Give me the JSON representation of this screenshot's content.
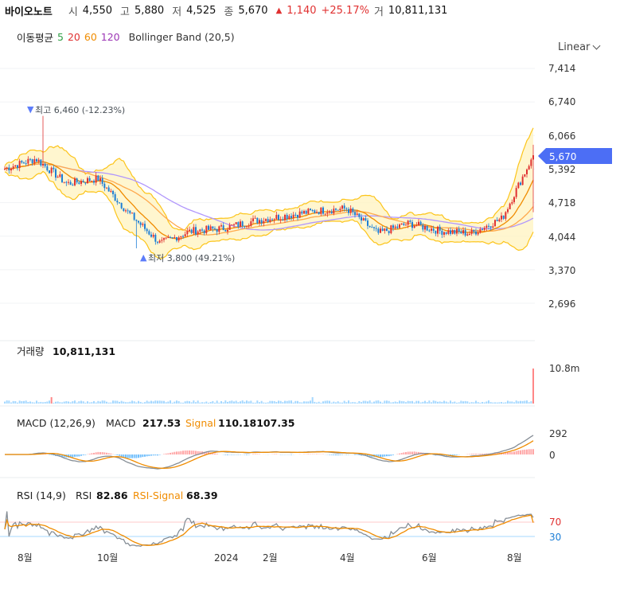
{
  "header": {
    "name": "바이오노트",
    "open_label": "시",
    "open": "4,550",
    "high_label": "고",
    "high": "5,880",
    "low_label": "저",
    "low": "4,525",
    "close_label": "종",
    "close": "5,670",
    "change_arrow": "▲",
    "change": "1,140",
    "change_pct": "+25.17%",
    "volume_label": "거",
    "volume": "10,811,131"
  },
  "ma_legend": {
    "label": "이동평균",
    "ma5": "5",
    "ma20": "20",
    "ma60": "60",
    "ma120": "120",
    "bollinger": "Bollinger Band (20,5)"
  },
  "scale_mode": "Linear",
  "price_axis": {
    "ticks": [
      "7,414",
      "6,740",
      "6,066",
      "5,392",
      "4,718",
      "4,044",
      "3,370",
      "2,696"
    ],
    "current_price": "5,670"
  },
  "annotations": {
    "high": "최고 6,460 (-12.23%)",
    "low": "최저 3,800 (49.21%)"
  },
  "volume_panel": {
    "label": "거래량",
    "value": "10,811,131",
    "axis_tick": "10.8m"
  },
  "macd_panel": {
    "label": "MACD (12,26,9)",
    "macd_label": "MACD",
    "macd_value": "217.53",
    "signal_label": "Signal",
    "signal_value": "110.18107.35",
    "ticks": [
      "292",
      "0"
    ]
  },
  "rsi_panel": {
    "label": "RSI (14,9)",
    "rsi_label": "RSI",
    "rsi_value": "82.86",
    "signal_label": "RSI-Signal",
    "signal_value": "68.39",
    "ticks": [
      "70",
      "30"
    ]
  },
  "time_axis": [
    "8월",
    "10월",
    "2024",
    "2월",
    "4월",
    "6월",
    "8월"
  ],
  "colors": {
    "up": "#e03131",
    "down": "#1c7ed6",
    "ma5": "#2f9e44",
    "ma20": "#e03131",
    "ma60": "#f08c00",
    "ma120": "#9c36b5",
    "band_fill": "#fff3bf",
    "band_line": "#fcc419",
    "price_tag": "#4c6ef5"
  },
  "chart_data": {
    "type": "candlestick",
    "y_range": [
      2696,
      7414
    ],
    "price_series": [
      {
        "t": "2023-08",
        "price": 5400
      },
      {
        "t": "2023-08b",
        "price": 5600
      },
      {
        "t": "2023-09",
        "price": 5100
      },
      {
        "t": "2023-09b",
        "price": 5200
      },
      {
        "t": "2023-10",
        "price": 4500
      },
      {
        "t": "2023-10b",
        "price": 3900
      },
      {
        "t": "2023-11",
        "price": 4150
      },
      {
        "t": "2023-12",
        "price": 4200
      },
      {
        "t": "2024-01",
        "price": 4350
      },
      {
        "t": "2024-02",
        "price": 4450
      },
      {
        "t": "2024-03",
        "price": 4550
      },
      {
        "t": "2024-03b",
        "price": 4600
      },
      {
        "t": "2024-04",
        "price": 4100
      },
      {
        "t": "2024-05",
        "price": 4300
      },
      {
        "t": "2024-06",
        "price": 4150
      },
      {
        "t": "2024-07",
        "price": 4100
      },
      {
        "t": "2024-08",
        "price": 4400
      },
      {
        "t": "2024-08b",
        "price": 5670
      }
    ],
    "high": 6460,
    "low": 3800,
    "last_close": 5670,
    "volume_last": 10811131,
    "macd_last": 217.53,
    "rsi_last": 82.86,
    "rsi_signal_last": 68.39,
    "rsi_levels": [
      70,
      30
    ]
  }
}
